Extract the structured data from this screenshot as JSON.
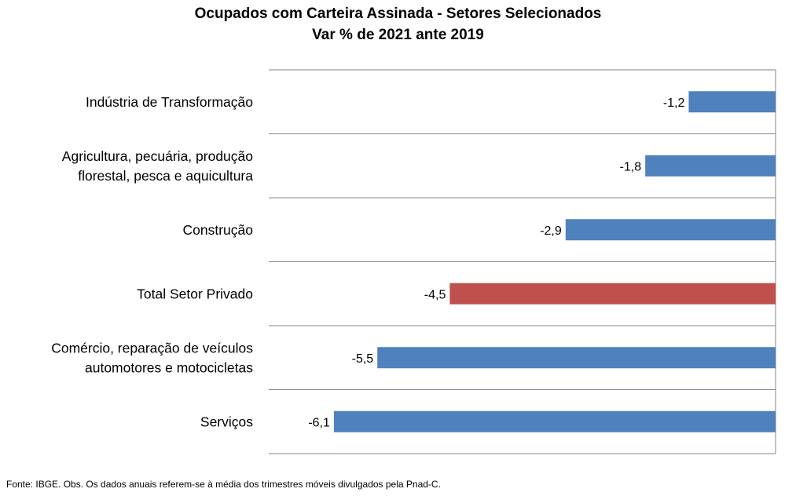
{
  "title": "Ocupados com Carteira Assinada - Setores Selecionados",
  "subtitle": "Var % de 2021 ante 2019",
  "footnote": "Fonte: IBGE. Obs. Os dados anuais referem-se à média dos trimestres móveis divulgados pela Pnad-C.",
  "colors": {
    "default_bar": "#4F81BD",
    "highlight_bar": "#C0504D",
    "grid": "#868686"
  },
  "chart_data": {
    "type": "bar",
    "orientation": "horizontal",
    "title": "Ocupados com Carteira Assinada - Setores Selecionados",
    "subtitle": "Var % de 2021 ante 2019",
    "categories": [
      [
        "Indústria de Transformação"
      ],
      [
        "Agricultura, pecuária, produção",
        "florestal, pesca e aquicultura"
      ],
      [
        "Construção"
      ],
      [
        "Total Setor Privado"
      ],
      [
        "Comércio, reparação de veículos",
        "automotores e motocicletas"
      ],
      [
        "Serviços"
      ]
    ],
    "values": [
      -1.2,
      -1.8,
      -2.9,
      -4.5,
      -5.5,
      -6.1
    ],
    "value_labels": [
      "-1,2",
      "-1,8",
      "-2,9",
      "-4,5",
      "-5,5",
      "-6,1"
    ],
    "highlight_index": 3,
    "xlim": [
      -7,
      0
    ],
    "grid": "horizontal separators between categories",
    "legend": "none"
  }
}
